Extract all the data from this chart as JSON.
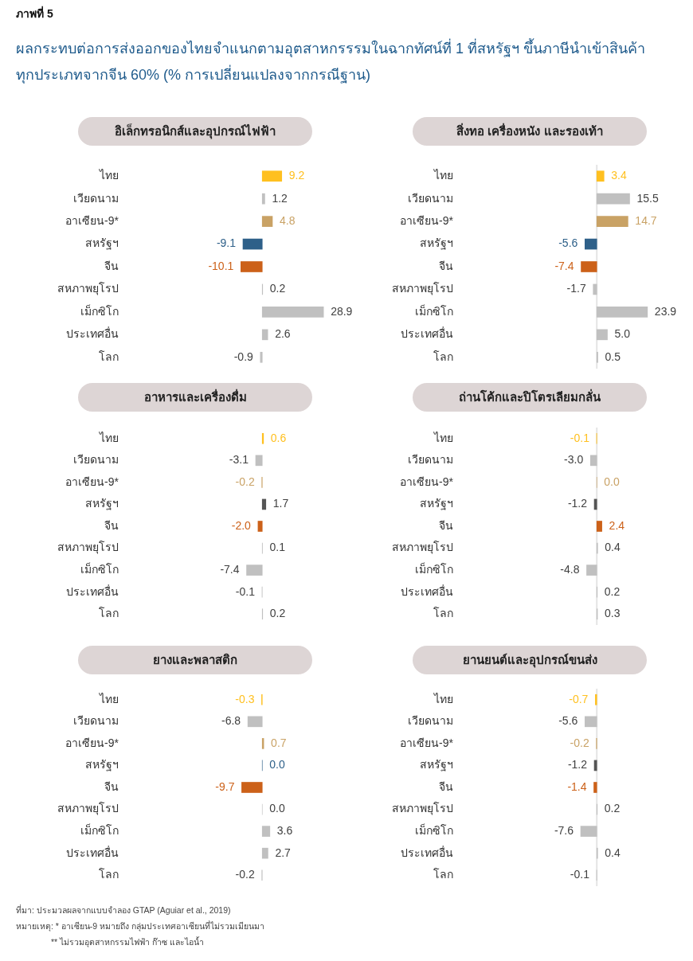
{
  "chart_data": [
    {
      "type": "other",
      "title": "ผลกระทบต่อการส่งออกของไทยจำแนกตามอุตสาหกรรรมในฉากทัศน์ที่ 1 ที่สหรัฐฯ ขึ้นภาษีนำเข้าสินค้า\nทุกประเภทจากจีน 60% (% การเปลี่ยนแปลงจากกรณีฐาน)",
      "annotations": [
        "ภาพที่ 5"
      ]
    },
    {
      "type": "bar",
      "orientation": "horizontal",
      "title": "อิเล็กทรอนิกส์และอุปกรณ์ไฟฟ้า",
      "categories": [
        "ไทย",
        "เวียดนาม",
        "อาเซียน-9*",
        "สหรัฐฯ",
        "จีน",
        "สหภาพยุโรป",
        "เม็กซิโก",
        "ประเทศอื่น",
        "โลก"
      ],
      "values": [
        9.2,
        1.2,
        4.8,
        -9.1,
        -10.1,
        0.2,
        28.9,
        2.6,
        -0.9
      ],
      "value_labels": [
        "9.2",
        "1.2",
        "4.8",
        "-9.1",
        "-10.1",
        "0.2",
        "28.9",
        "2.6",
        "-0.9"
      ],
      "colors": [
        "#ffc020",
        "#c0c0c0",
        "#c9a265",
        "#2e6089",
        "#cc6119",
        "#c0c0c0",
        "#c0c0c0",
        "#c0c0c0",
        "#c0c0c0"
      ],
      "tick_labels": "y"
    },
    {
      "type": "bar",
      "orientation": "horizontal",
      "title": "สิ่งทอ เครื่องหนัง และรองเท้า",
      "categories": [
        "ไทย",
        "เวียดนาม",
        "อาเซียน-9*",
        "สหรัฐฯ",
        "จีน",
        "สหภาพยุโรป",
        "เม็กซิโก",
        "ประเทศอื่น",
        "โลก"
      ],
      "values": [
        3.4,
        15.5,
        14.7,
        -5.6,
        -7.4,
        -1.7,
        23.9,
        5.0,
        0.5
      ],
      "value_labels": [
        "3.4",
        "15.5",
        "14.7",
        "-5.6",
        "-7.4",
        "-1.7",
        "23.9",
        "5.0",
        "0.5"
      ],
      "colors": [
        "#ffc020",
        "#c0c0c0",
        "#c9a265",
        "#2e6089",
        "#cc6119",
        "#c0c0c0",
        "#c0c0c0",
        "#c0c0c0",
        "#c0c0c0"
      ],
      "tick_labels": "y",
      "ref_lines": [
        {
          "axis": "x",
          "value": 0,
          "color": "#e4e4e4"
        }
      ]
    },
    {
      "type": "bar",
      "orientation": "horizontal",
      "title": "อาหารและเครื่องดื่ม",
      "categories": [
        "ไทย",
        "เวียดนาม",
        "อาเซียน-9*",
        "สหรัฐฯ",
        "จีน",
        "สหภาพยุโรป",
        "เม็กซิโก",
        "ประเทศอื่น",
        "โลก"
      ],
      "values": [
        0.6,
        -3.1,
        -0.2,
        1.7,
        -2.0,
        0.1,
        -7.4,
        -0.1,
        0.2
      ],
      "value_labels": [
        "0.6",
        "-3.1",
        "-0.2",
        "1.7",
        "-2.0",
        "0.1",
        "-7.4",
        "-0.1",
        "0.2"
      ],
      "colors": [
        "#ffc020",
        "#c0c0c0",
        "#c9a265",
        "#555555",
        "#cc6119",
        "#c0c0c0",
        "#c0c0c0",
        "#c0c0c0",
        "#c0c0c0"
      ],
      "tick_labels": "y"
    },
    {
      "type": "bar",
      "orientation": "horizontal",
      "title": "ถ่านโค้กและปิโตรเลียมกลั่น",
      "categories": [
        "ไทย",
        "เวียดนาม",
        "อาเซียน-9*",
        "สหรัฐฯ",
        "จีน",
        "สหภาพยุโรป",
        "เม็กซิโก",
        "ประเทศอื่น",
        "โลก"
      ],
      "values": [
        -0.1,
        -3.0,
        0.0,
        -1.2,
        2.4,
        0.4,
        -4.8,
        0.2,
        0.3
      ],
      "value_labels": [
        "-0.1",
        "-3.0",
        "0.0",
        "-1.2",
        "2.4",
        "0.4",
        "-4.8",
        "0.2",
        "0.3"
      ],
      "colors": [
        "#ffc020",
        "#c0c0c0",
        "#c9a265",
        "#555555",
        "#cc6119",
        "#c0c0c0",
        "#c0c0c0",
        "#c0c0c0",
        "#c0c0c0"
      ],
      "tick_labels": "y",
      "ref_lines": [
        {
          "axis": "x",
          "value": 0,
          "color": "#e4e4e4"
        }
      ]
    },
    {
      "type": "bar",
      "orientation": "horizontal",
      "title": "ยางและพลาสติก",
      "categories": [
        "ไทย",
        "เวียดนาม",
        "อาเซียน-9*",
        "สหรัฐฯ",
        "จีน",
        "สหภาพยุโรป",
        "เม็กซิโก",
        "ประเทศอื่น",
        "โลก"
      ],
      "values": [
        -0.3,
        -6.8,
        0.7,
        0.0,
        -9.7,
        0.0,
        3.6,
        2.7,
        -0.2
      ],
      "value_labels": [
        "-0.3",
        "-6.8",
        "0.7",
        "0.0",
        "-9.7",
        "0.0",
        "3.6",
        "2.7",
        "-0.2"
      ],
      "colors": [
        "#ffc020",
        "#c0c0c0",
        "#c9a265",
        "#2e6089",
        "#cc6119",
        "#c0c0c0",
        "#c0c0c0",
        "#c0c0c0",
        "#c0c0c0"
      ],
      "tick_labels": "y"
    },
    {
      "type": "bar",
      "orientation": "horizontal",
      "title": "ยานยนต์และอุปกรณ์ขนส่ง",
      "categories": [
        "ไทย",
        "เวียดนาม",
        "อาเซียน-9*",
        "สหรัฐฯ",
        "จีน",
        "สหภาพยุโรป",
        "เม็กซิโก",
        "ประเทศอื่น",
        "โลก"
      ],
      "values": [
        -0.7,
        -5.6,
        -0.2,
        -1.2,
        -1.4,
        0.2,
        -7.6,
        0.4,
        -0.1
      ],
      "value_labels": [
        "-0.7",
        "-5.6",
        "-0.2",
        "-1.2",
        "-1.4",
        "0.2",
        "-7.6",
        "0.4",
        "-0.1"
      ],
      "colors": [
        "#ffc020",
        "#c0c0c0",
        "#c9a265",
        "#555555",
        "#cc6119",
        "#c0c0c0",
        "#c0c0c0",
        "#c0c0c0",
        "#c0c0c0"
      ],
      "tick_labels": "y",
      "ref_lines": [
        {
          "axis": "x",
          "value": 0,
          "color": "#e4e4e4"
        }
      ]
    },
    {
      "type": "other",
      "annotations": [
        "ที่มา: ประมวลผลจากแบบจำลอง GTAP (Aguiar et al., 2019)",
        "หมายเหตุ: * อาเซียน-9 หมายถึง กลุ่มประเทศอาเซียนที่ไม่รวมเมียนมา",
        "** ไม่รวมอุตสาหกรรมไฟฟ้า ก๊าซ และไอน้ำ"
      ]
    }
  ]
}
